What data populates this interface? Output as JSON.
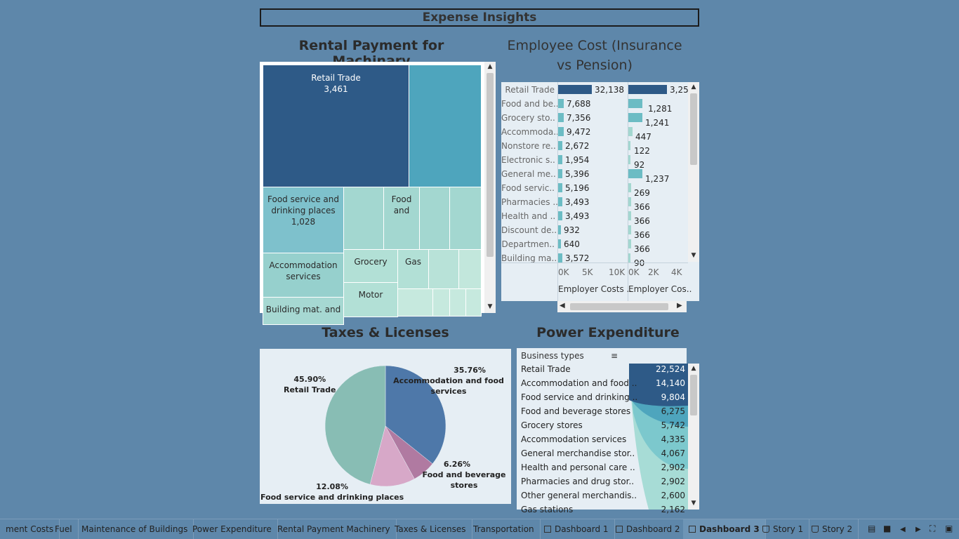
{
  "dashboard_title": "Expense Insights",
  "rental": {
    "title": "Rental Payment for Machinary",
    "cells": [
      {
        "label": "Retail Trade",
        "value": "3,461"
      },
      {
        "label": "Food service and drinking places",
        "value": "1,028"
      },
      {
        "label": "Food and",
        "value": ""
      },
      {
        "label": "Accommodation services",
        "value": ""
      },
      {
        "label": "Grocery",
        "value": ""
      },
      {
        "label": "Gas",
        "value": ""
      },
      {
        "label": "Motor",
        "value": ""
      },
      {
        "label": "Building mat. and",
        "value": ""
      }
    ]
  },
  "employee": {
    "title": "Employee Cost (Insurance vs Pension)",
    "rows": [
      {
        "label": "Retail Trade",
        "v1": "32,138",
        "v2": "3,25"
      },
      {
        "label": "Food and be..",
        "v1": "7,688",
        "v2": "1,281"
      },
      {
        "label": "Grocery sto..",
        "v1": "7,356",
        "v2": "1,241"
      },
      {
        "label": "Accommoda..",
        "v1": "9,472",
        "v2": "447"
      },
      {
        "label": "Nonstore re..",
        "v1": "2,672",
        "v2": "122"
      },
      {
        "label": "Electronic s..",
        "v1": "1,954",
        "v2": "92"
      },
      {
        "label": "General me..",
        "v1": "5,396",
        "v2": "1,237"
      },
      {
        "label": "Food servic..",
        "v1": "5,196",
        "v2": "269"
      },
      {
        "label": "Pharmacies ..",
        "v1": "3,493",
        "v2": "366"
      },
      {
        "label": "Health and ..",
        "v1": "3,493",
        "v2": "366"
      },
      {
        "label": "Discount de..",
        "v1": "932",
        "v2": "366"
      },
      {
        "label": "Departmen..",
        "v1": "640",
        "v2": "366"
      },
      {
        "label": "Building ma..",
        "v1": "3,572",
        "v2": "90"
      }
    ],
    "axis1_ticks": [
      "0K",
      "5K",
      "10K"
    ],
    "axis2_ticks": [
      "0K",
      "2K",
      "4K"
    ],
    "axis1_title": "Employer Costs ..",
    "axis2_title": "Employer Cos.."
  },
  "taxes": {
    "title": "Taxes & Licenses",
    "slices": [
      {
        "pct": "45.90%",
        "label": "Retail Trade",
        "color": "#88bdb4"
      },
      {
        "pct": "35.76%",
        "label": "Accommodation and food services",
        "color": "#4e78a9"
      },
      {
        "pct": "6.26%",
        "label": "Food and beverage stores",
        "color": "#b07aa1"
      },
      {
        "pct": "12.08%",
        "label": "Food service and drinking places",
        "color": "#d7a8c8"
      }
    ]
  },
  "power": {
    "title": "Power Expenditure",
    "header": "Business types",
    "rows": [
      {
        "label": "Retail Trade",
        "value": "22,524"
      },
      {
        "label": "Accommodation and food ..",
        "value": "14,140"
      },
      {
        "label": "Food service and drinking ..",
        "value": "9,804"
      },
      {
        "label": "Food and beverage stores",
        "value": "6,275"
      },
      {
        "label": "Grocery stores",
        "value": "5,742"
      },
      {
        "label": "Accommodation services",
        "value": "4,335"
      },
      {
        "label": "General merchandise stor..",
        "value": "4,067"
      },
      {
        "label": "Health and personal care ..",
        "value": "2,902"
      },
      {
        "label": "Pharmacies and drug stor..",
        "value": "2,902"
      },
      {
        "label": "Other general merchandis..",
        "value": "2,600"
      },
      {
        "label": "Gas stations",
        "value": "2,162"
      }
    ]
  },
  "tabs": [
    {
      "label": "ment Costs",
      "icon": ""
    },
    {
      "label": "Fuel",
      "icon": ""
    },
    {
      "label": "Maintenance of Buildings",
      "icon": ""
    },
    {
      "label": "Power Expenditure",
      "icon": ""
    },
    {
      "label": "Rental Payment Machinery",
      "icon": ""
    },
    {
      "label": "Taxes & Licenses",
      "icon": ""
    },
    {
      "label": "Transportation",
      "icon": ""
    },
    {
      "label": "Dashboard 1",
      "icon": "dashboard-icon"
    },
    {
      "label": "Dashboard 2",
      "icon": "dashboard-icon"
    },
    {
      "label": "Dashboard 3",
      "icon": "dashboard-icon"
    },
    {
      "label": "Story 1",
      "icon": "story-icon"
    },
    {
      "label": "Story 2",
      "icon": "story-icon"
    }
  ]
}
